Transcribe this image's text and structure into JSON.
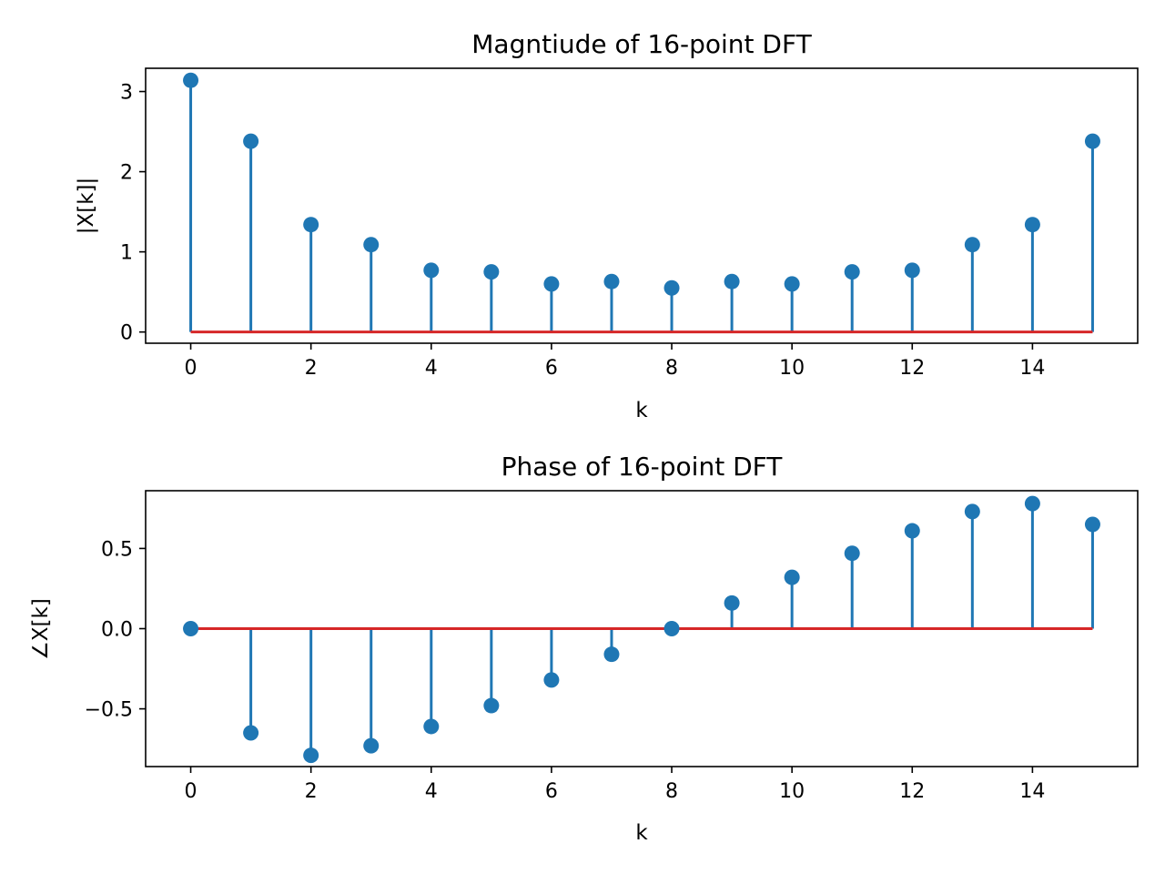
{
  "colors": {
    "stem": "#1f77b4",
    "baseline": "#d62728",
    "axes": "#000000"
  },
  "chart_data": [
    {
      "type": "stem",
      "title": "Magntiude of 16-point DFT",
      "xlabel": "k",
      "ylabel": "|X[k]|",
      "x": [
        0,
        1,
        2,
        3,
        4,
        5,
        6,
        7,
        8,
        9,
        10,
        11,
        12,
        13,
        14,
        15
      ],
      "values": [
        3.14,
        2.38,
        1.34,
        1.09,
        0.77,
        0.75,
        0.6,
        0.63,
        0.55,
        0.63,
        0.6,
        0.75,
        0.77,
        1.09,
        1.34,
        2.38
      ],
      "xlim": [
        -0.75,
        15.75
      ],
      "ylim": [
        -0.14,
        3.29
      ],
      "xticks": [
        0,
        2,
        4,
        6,
        8,
        10,
        12,
        14
      ],
      "xtick_labels": [
        "0",
        "2",
        "4",
        "6",
        "8",
        "10",
        "12",
        "14"
      ],
      "yticks": [
        0,
        1,
        2,
        3
      ],
      "ytick_labels": [
        "0",
        "1",
        "2",
        "3"
      ],
      "baseline": 0,
      "grid": false
    },
    {
      "type": "stem",
      "title": "Phase of 16-point DFT",
      "xlabel": "k",
      "ylabel": "∠X[k]",
      "x": [
        0,
        1,
        2,
        3,
        4,
        5,
        6,
        7,
        8,
        9,
        10,
        11,
        12,
        13,
        14,
        15
      ],
      "values": [
        0.0,
        -0.65,
        -0.79,
        -0.73,
        -0.61,
        -0.48,
        -0.32,
        -0.16,
        0.0,
        0.16,
        0.32,
        0.47,
        0.61,
        0.73,
        0.78,
        0.65
      ],
      "xlim": [
        -0.75,
        15.75
      ],
      "ylim": [
        -0.86,
        0.86
      ],
      "xticks": [
        0,
        2,
        4,
        6,
        8,
        10,
        12,
        14
      ],
      "xtick_labels": [
        "0",
        "2",
        "4",
        "6",
        "8",
        "10",
        "12",
        "14"
      ],
      "yticks": [
        0.5,
        0.0,
        -0.5
      ],
      "ytick_labels": [
        "0.5",
        "0.0",
        "−0.5"
      ],
      "baseline": 0,
      "grid": false
    }
  ]
}
